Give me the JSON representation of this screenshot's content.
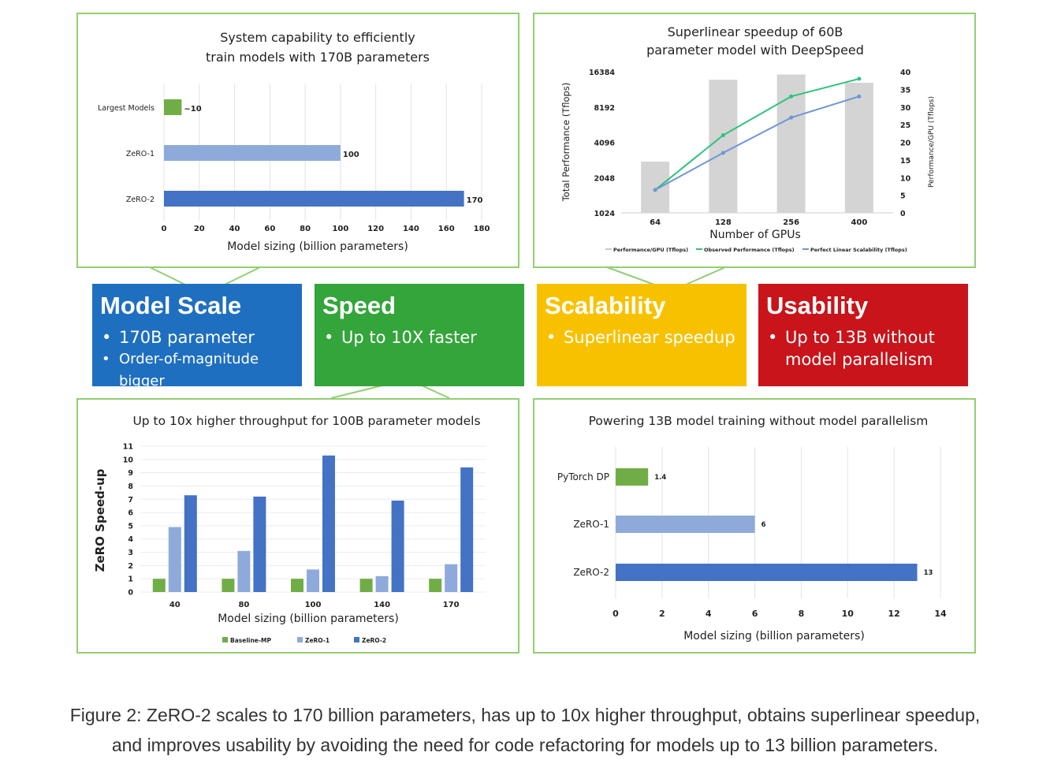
{
  "colors": {
    "green": "#70ad47",
    "lightblue": "#8eaadb",
    "blue": "#4472c4",
    "gray": "#d4d4d4",
    "tile_blue": "#1f6fc0",
    "tile_green": "#34a53a",
    "tile_yellow": "#f8c100",
    "tile_red": "#c8141a",
    "border": "#92cf72"
  },
  "tiles": [
    {
      "title": "Model Scale",
      "bullets": [
        "170B parameter",
        "Order-of-magnitude bigger"
      ]
    },
    {
      "title": "Speed",
      "bullets": [
        "Up to 10X faster"
      ]
    },
    {
      "title": "Scalability",
      "bullets": [
        "Superlinear speedup"
      ]
    },
    {
      "title": "Usability",
      "bullets": [
        "Up to 13B without model parallelism"
      ]
    }
  ],
  "chart_data": [
    {
      "id": "capability",
      "type": "bar",
      "orientation": "horizontal",
      "title": "System capability to efficiently train models with 170B parameters",
      "title_lines": [
        "System capability to efficiently",
        "train models with 170B parameters"
      ],
      "categories": [
        "Largest Models",
        "ZeRO-1",
        "ZeRO-2"
      ],
      "values": [
        10,
        100,
        170
      ],
      "data_labels": [
        "~10",
        "100",
        "170"
      ],
      "xlabel": "Model sizing (billion parameters)",
      "xlim": [
        0,
        180
      ],
      "xticks": [
        0,
        20,
        40,
        60,
        80,
        100,
        120,
        140,
        160,
        180
      ]
    },
    {
      "id": "superlinear",
      "type": "bar+line",
      "title": "Superlinear speedup of 60B parameter model with DeepSpeed",
      "title_lines": [
        "Superlinear speedup of 60B",
        "parameter model with DeepSpeed"
      ],
      "categories": [
        "64",
        "128",
        "256",
        "400"
      ],
      "xlabel": "Number of GPUs",
      "ylabel_left": "Total Performance (Tflops)",
      "ylabel_right": "Performance/GPU (Tflops)",
      "left_ticks": [
        "16384",
        "8192",
        "4096",
        "2048",
        "1024"
      ],
      "left_range_log2": [
        10,
        14
      ],
      "right_ticks": [
        "40",
        "35",
        "30",
        "25",
        "20",
        "15",
        "10",
        "5",
        "0"
      ],
      "right_range": [
        0,
        40
      ],
      "bars_total_tflops": [
        2800,
        14000,
        15500,
        13200
      ],
      "series": [
        {
          "name": "Observed Performance (Tflops)",
          "values": [
            6.5,
            22,
            33,
            38
          ]
        },
        {
          "name": "Perfect Linear Scalability (Tflops)",
          "values": [
            6.5,
            17,
            27,
            33
          ]
        }
      ],
      "legend": [
        "Performance/GPU (Tflops)",
        "Observed Performance (Tflops)",
        "Perfect Linear Scalability (Tflops)"
      ]
    },
    {
      "id": "throughput",
      "type": "bar",
      "title": "Up to 10x higher throughput for 100B parameter models",
      "categories": [
        "40",
        "80",
        "100",
        "140",
        "170"
      ],
      "series": [
        {
          "name": "Baseline-MP",
          "values": [
            1,
            1,
            1,
            1,
            1
          ]
        },
        {
          "name": "ZeRO-1",
          "values": [
            4.9,
            3.1,
            1.7,
            1.2,
            2.1
          ]
        },
        {
          "name": "ZeRO-2",
          "values": [
            7.3,
            7.2,
            10.3,
            6.9,
            9.4
          ]
        }
      ],
      "xlabel": "Model sizing (billion parameters)",
      "ylabel": "ZeRO Speed-up",
      "ylim": [
        0,
        11
      ],
      "yticks": [
        0,
        1,
        2,
        3,
        4,
        5,
        6,
        7,
        8,
        9,
        10,
        11
      ]
    },
    {
      "id": "usability",
      "type": "bar",
      "orientation": "horizontal",
      "title": "Powering 13B model training without model parallelism",
      "categories": [
        "PyTorch DP",
        "ZeRO-1",
        "ZeRO-2"
      ],
      "values": [
        1.4,
        6,
        13
      ],
      "data_labels": [
        "1.4",
        "6",
        "13"
      ],
      "xlabel": "Model sizing (billion parameters)",
      "xlim": [
        0,
        14
      ],
      "xticks": [
        0,
        2,
        4,
        6,
        8,
        10,
        12,
        14
      ]
    }
  ],
  "caption": [
    "Figure 2: ZeRO-2 scales to 170 billion parameters, has up to 10x higher throughput, obtains superlinear speedup,",
    "and improves usability by avoiding the need for code refactoring for models up to 13 billion parameters."
  ]
}
